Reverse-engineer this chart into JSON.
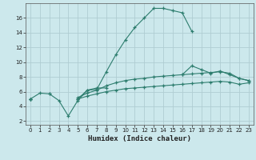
{
  "title": "",
  "xlabel": "Humidex (Indice chaleur)",
  "x_values": [
    0,
    1,
    2,
    3,
    4,
    5,
    6,
    7,
    8,
    9,
    10,
    11,
    12,
    13,
    14,
    15,
    16,
    17,
    18,
    19,
    20,
    21,
    22,
    23
  ],
  "line1": [
    5.0,
    5.8,
    5.7,
    null,
    null,
    5.0,
    6.2,
    6.3,
    8.7,
    11.0,
    13.0,
    14.7,
    16.0,
    17.3,
    17.3,
    17.0,
    16.7,
    14.2,
    null,
    null,
    null,
    null,
    null,
    null
  ],
  "line2": [
    5.0,
    null,
    5.7,
    4.8,
    2.7,
    4.8,
    6.2,
    6.5,
    6.5,
    null,
    null,
    null,
    null,
    null,
    null,
    null,
    8.3,
    9.5,
    9.0,
    8.5,
    8.8,
    8.3,
    7.8,
    7.5
  ],
  "line3": [
    5.0,
    null,
    null,
    null,
    null,
    5.2,
    5.8,
    6.2,
    6.8,
    7.2,
    7.5,
    7.7,
    7.8,
    8.0,
    8.1,
    8.2,
    8.3,
    8.4,
    8.5,
    8.6,
    8.7,
    8.5,
    7.8,
    7.5
  ],
  "line4": [
    5.0,
    null,
    null,
    null,
    null,
    5.0,
    5.4,
    5.7,
    6.0,
    6.2,
    6.4,
    6.5,
    6.6,
    6.7,
    6.8,
    6.9,
    7.0,
    7.1,
    7.2,
    7.3,
    7.4,
    7.3,
    7.0,
    7.2
  ],
  "line_color": "#2d7d6e",
  "bg_color": "#cce8ec",
  "grid_color": "#b0cdd2",
  "ylim": [
    1.5,
    18.0
  ],
  "xlim": [
    -0.5,
    23.5
  ],
  "yticks": [
    2,
    4,
    6,
    8,
    10,
    12,
    14,
    16
  ],
  "xticks": [
    0,
    1,
    2,
    3,
    4,
    5,
    6,
    7,
    8,
    9,
    10,
    11,
    12,
    13,
    14,
    15,
    16,
    17,
    18,
    19,
    20,
    21,
    22,
    23
  ]
}
